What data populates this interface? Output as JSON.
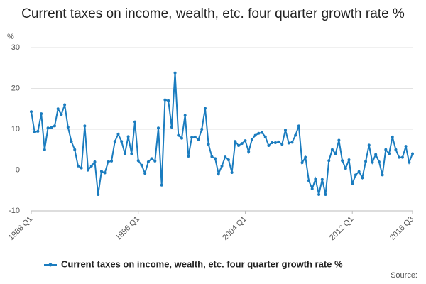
{
  "chart_data": {
    "type": "line",
    "title": "Current taxes on income, wealth, etc. four quarter growth rate %",
    "y_label": "%",
    "source": "Source:",
    "categories": [
      "1988 Q1",
      null,
      null,
      null,
      null,
      null,
      null,
      null,
      null,
      null,
      null,
      null,
      null,
      null,
      null,
      null,
      null,
      null,
      null,
      null,
      null,
      null,
      null,
      null,
      null,
      null,
      null,
      null,
      null,
      null,
      null,
      null,
      "1996 Q1",
      null,
      null,
      null,
      null,
      null,
      null,
      null,
      null,
      null,
      null,
      null,
      null,
      null,
      null,
      null,
      null,
      null,
      null,
      null,
      null,
      null,
      null,
      null,
      null,
      null,
      null,
      null,
      null,
      null,
      null,
      null,
      "2004 Q1",
      null,
      null,
      null,
      null,
      null,
      null,
      null,
      null,
      null,
      null,
      null,
      null,
      null,
      null,
      null,
      null,
      null,
      null,
      null,
      null,
      null,
      null,
      null,
      null,
      null,
      null,
      null,
      null,
      null,
      null,
      null,
      "2012 Q1",
      null,
      null,
      null,
      null,
      null,
      null,
      null,
      null,
      null,
      null,
      null,
      null,
      null,
      null,
      null,
      null,
      null,
      "2016 Q3"
    ],
    "series": [
      {
        "name": "Current taxes on income, wealth, etc. four quarter growth rate %",
        "color": "#1a7cbf",
        "values": [
          14.3,
          9.3,
          9.5,
          13.8,
          5,
          10.3,
          10.4,
          10.8,
          15,
          13.6,
          16,
          10.5,
          7,
          5,
          1,
          0.5,
          10.8,
          0,
          1,
          2,
          -6,
          -0.3,
          -0.7,
          2,
          2.2,
          7,
          8.8,
          7,
          4,
          8.2,
          4,
          11.8,
          2.3,
          1.2,
          -0.8,
          2,
          2.8,
          2.2,
          10.3,
          -3.7,
          17.2,
          17,
          10.5,
          23.8,
          8.5,
          7.8,
          13.4,
          3.4,
          8,
          8.1,
          7.5,
          10,
          15.1,
          6.3,
          3.3,
          2.8,
          -0.9,
          1,
          3.2,
          2.5,
          -0.6,
          7,
          6,
          6.5,
          7.2,
          4.5,
          7.5,
          8.5,
          9,
          9.2,
          8.1,
          6,
          6.7,
          6.7,
          6.9,
          6.3,
          9.8,
          6.6,
          6.8,
          8.5,
          10.8,
          1.8,
          3.1,
          -2.6,
          -4.6,
          -2.2,
          -6,
          -2.3,
          -6,
          2.3,
          5,
          4,
          7.3,
          2.3,
          0.4,
          2.5,
          -3.4,
          -1.2,
          -0.4,
          -1.9,
          2.1,
          6.1,
          1.9,
          3.8,
          2,
          -1.2,
          5,
          4,
          8.1,
          5,
          3.1,
          3.1,
          5.8,
          1.9,
          4
        ]
      }
    ],
    "ylim": [
      -10,
      30
    ],
    "yticks": [
      -10,
      0,
      10,
      20,
      30
    ],
    "grid": true
  }
}
